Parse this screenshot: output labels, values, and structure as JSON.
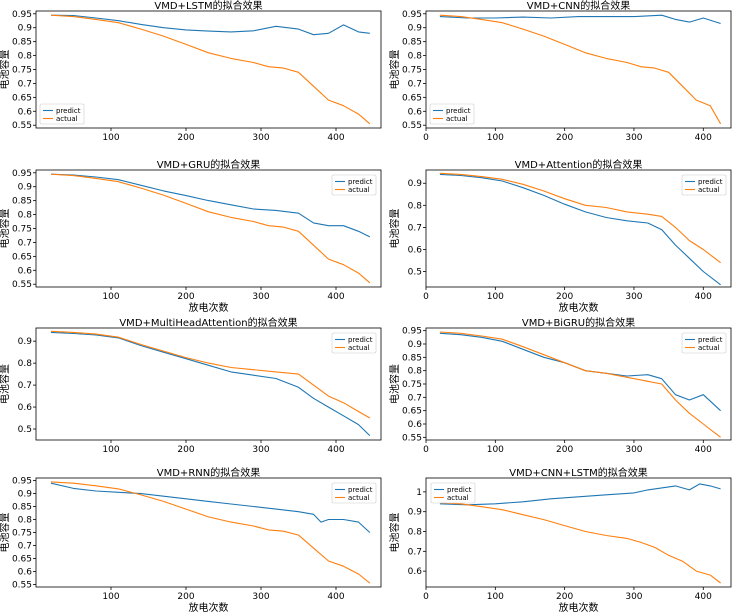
{
  "colors": {
    "predict": "#1f77b4",
    "actual": "#ff7f0e"
  },
  "chart_data": [
    {
      "type": "line",
      "title": "VMD+LSTM的拟合效果",
      "xlabel": "",
      "ylabel": "电池容量",
      "xlim": [
        0,
        460
      ],
      "ylim": [
        0.54,
        0.96
      ],
      "xticks": [
        100,
        200,
        300,
        400
      ],
      "yticks": [
        0.55,
        0.6,
        0.65,
        0.7,
        0.75,
        0.8,
        0.85,
        0.9,
        0.95
      ],
      "legend": "bottom-left",
      "series": [
        {
          "name": "predict",
          "x": [
            20,
            50,
            80,
            110,
            140,
            170,
            200,
            230,
            260,
            290,
            320,
            350,
            370,
            390,
            410,
            430,
            445
          ],
          "values": [
            0.945,
            0.944,
            0.935,
            0.925,
            0.912,
            0.9,
            0.892,
            0.888,
            0.885,
            0.889,
            0.905,
            0.895,
            0.875,
            0.88,
            0.91,
            0.885,
            0.88
          ]
        },
        {
          "name": "actual",
          "x": [
            20,
            50,
            80,
            110,
            140,
            170,
            200,
            230,
            260,
            290,
            310,
            330,
            350,
            370,
            390,
            410,
            430,
            445
          ],
          "values": [
            0.945,
            0.94,
            0.93,
            0.918,
            0.895,
            0.87,
            0.84,
            0.81,
            0.79,
            0.775,
            0.76,
            0.755,
            0.74,
            0.69,
            0.64,
            0.62,
            0.59,
            0.555
          ]
        }
      ]
    },
    {
      "type": "line",
      "title": "VMD+CNN的拟合效果",
      "xlabel": "",
      "ylabel": "电池容量",
      "xlim": [
        0,
        440
      ],
      "ylim": [
        0.54,
        0.96
      ],
      "xticks": [
        0,
        100,
        200,
        300,
        400
      ],
      "yticks": [
        0.55,
        0.6,
        0.65,
        0.7,
        0.75,
        0.8,
        0.85,
        0.9,
        0.95
      ],
      "legend": "bottom-left",
      "series": [
        {
          "name": "predict",
          "x": [
            20,
            60,
            100,
            140,
            180,
            220,
            260,
            300,
            340,
            360,
            380,
            400,
            425
          ],
          "values": [
            0.94,
            0.935,
            0.935,
            0.938,
            0.935,
            0.94,
            0.94,
            0.94,
            0.945,
            0.93,
            0.92,
            0.935,
            0.915
          ]
        },
        {
          "name": "actual",
          "x": [
            20,
            50,
            80,
            110,
            140,
            170,
            200,
            230,
            260,
            290,
            310,
            330,
            350,
            370,
            390,
            410,
            425
          ],
          "values": [
            0.945,
            0.94,
            0.93,
            0.918,
            0.895,
            0.87,
            0.84,
            0.81,
            0.79,
            0.775,
            0.76,
            0.755,
            0.74,
            0.69,
            0.64,
            0.62,
            0.555
          ]
        }
      ]
    },
    {
      "type": "line",
      "title": "VMD+GRU的拟合效果",
      "xlabel": "放电次数",
      "ylabel": "电池容量",
      "xlim": [
        0,
        460
      ],
      "ylim": [
        0.54,
        0.96
      ],
      "xticks": [
        100,
        200,
        300,
        400
      ],
      "yticks": [
        0.55,
        0.6,
        0.65,
        0.7,
        0.75,
        0.8,
        0.85,
        0.9,
        0.95
      ],
      "legend": "top-right",
      "series": [
        {
          "name": "predict",
          "x": [
            20,
            50,
            80,
            110,
            140,
            170,
            200,
            230,
            260,
            290,
            320,
            350,
            370,
            390,
            410,
            430,
            445
          ],
          "values": [
            0.945,
            0.942,
            0.935,
            0.925,
            0.905,
            0.885,
            0.868,
            0.85,
            0.835,
            0.82,
            0.815,
            0.805,
            0.77,
            0.76,
            0.76,
            0.74,
            0.72
          ]
        },
        {
          "name": "actual",
          "x": [
            20,
            50,
            80,
            110,
            140,
            170,
            200,
            230,
            260,
            290,
            310,
            330,
            350,
            370,
            390,
            410,
            430,
            445
          ],
          "values": [
            0.945,
            0.94,
            0.93,
            0.918,
            0.895,
            0.87,
            0.84,
            0.81,
            0.79,
            0.775,
            0.76,
            0.755,
            0.74,
            0.69,
            0.64,
            0.62,
            0.59,
            0.555
          ]
        }
      ]
    },
    {
      "type": "line",
      "title": "VMD+Attention的拟合效果",
      "xlabel": "放电次数",
      "ylabel": "电池容量",
      "xlim": [
        0,
        440
      ],
      "ylim": [
        0.43,
        0.96
      ],
      "xticks": [
        0,
        100,
        200,
        300,
        400
      ],
      "yticks": [
        0.5,
        0.6,
        0.7,
        0.8,
        0.9
      ],
      "legend": "top-right",
      "series": [
        {
          "name": "predict",
          "x": [
            20,
            50,
            80,
            110,
            140,
            170,
            200,
            230,
            260,
            290,
            320,
            340,
            360,
            380,
            400,
            425
          ],
          "values": [
            0.94,
            0.935,
            0.925,
            0.91,
            0.88,
            0.845,
            0.805,
            0.77,
            0.745,
            0.73,
            0.72,
            0.69,
            0.62,
            0.56,
            0.5,
            0.44
          ]
        },
        {
          "name": "actual",
          "x": [
            20,
            50,
            80,
            110,
            140,
            170,
            200,
            230,
            260,
            290,
            320,
            340,
            360,
            380,
            400,
            425
          ],
          "values": [
            0.945,
            0.94,
            0.93,
            0.918,
            0.895,
            0.865,
            0.83,
            0.8,
            0.79,
            0.77,
            0.76,
            0.75,
            0.7,
            0.64,
            0.6,
            0.54
          ]
        }
      ]
    },
    {
      "type": "line",
      "title": "VMD+MultiHeadAttention的拟合效果",
      "xlabel": "",
      "ylabel": "电池容量",
      "xlim": [
        0,
        460
      ],
      "ylim": [
        0.45,
        0.96
      ],
      "xticks": [
        100,
        200,
        300,
        400
      ],
      "yticks": [
        0.5,
        0.6,
        0.7,
        0.8,
        0.9
      ],
      "legend": "top-right",
      "series": [
        {
          "name": "predict",
          "x": [
            20,
            50,
            80,
            110,
            140,
            170,
            200,
            230,
            260,
            290,
            320,
            350,
            370,
            390,
            410,
            430,
            445
          ],
          "values": [
            0.94,
            0.935,
            0.928,
            0.915,
            0.88,
            0.85,
            0.82,
            0.79,
            0.76,
            0.745,
            0.73,
            0.69,
            0.64,
            0.6,
            0.56,
            0.52,
            0.47
          ]
        },
        {
          "name": "actual",
          "x": [
            20,
            50,
            80,
            110,
            140,
            170,
            200,
            230,
            260,
            290,
            320,
            350,
            370,
            390,
            410,
            430,
            445
          ],
          "values": [
            0.945,
            0.94,
            0.932,
            0.918,
            0.885,
            0.855,
            0.825,
            0.8,
            0.78,
            0.77,
            0.76,
            0.75,
            0.7,
            0.65,
            0.62,
            0.58,
            0.55
          ]
        }
      ]
    },
    {
      "type": "line",
      "title": "VMD+BiGRU的拟合效果",
      "xlabel": "",
      "ylabel": "电池容量",
      "xlim": [
        0,
        440
      ],
      "ylim": [
        0.54,
        0.96
      ],
      "xticks": [
        0,
        100,
        200,
        300,
        400
      ],
      "yticks": [
        0.55,
        0.6,
        0.65,
        0.7,
        0.75,
        0.8,
        0.85,
        0.9,
        0.95
      ],
      "legend": "top-right",
      "series": [
        {
          "name": "predict",
          "x": [
            20,
            50,
            80,
            110,
            140,
            170,
            200,
            230,
            260,
            290,
            320,
            340,
            360,
            380,
            400,
            425
          ],
          "values": [
            0.94,
            0.935,
            0.925,
            0.91,
            0.88,
            0.85,
            0.83,
            0.8,
            0.79,
            0.78,
            0.785,
            0.77,
            0.71,
            0.69,
            0.71,
            0.65
          ]
        },
        {
          "name": "actual",
          "x": [
            20,
            50,
            80,
            110,
            140,
            170,
            200,
            230,
            260,
            290,
            320,
            340,
            360,
            380,
            400,
            425
          ],
          "values": [
            0.945,
            0.94,
            0.93,
            0.918,
            0.89,
            0.86,
            0.83,
            0.8,
            0.79,
            0.775,
            0.76,
            0.75,
            0.69,
            0.64,
            0.6,
            0.55
          ]
        }
      ]
    },
    {
      "type": "line",
      "title": "VMD+RNN的拟合效果",
      "xlabel": "放电次数",
      "ylabel": "电池容量",
      "xlim": [
        0,
        460
      ],
      "ylim": [
        0.54,
        0.96
      ],
      "xticks": [
        100,
        200,
        300,
        400
      ],
      "yticks": [
        0.55,
        0.6,
        0.65,
        0.7,
        0.75,
        0.8,
        0.85,
        0.9,
        0.95
      ],
      "legend": "top-right",
      "series": [
        {
          "name": "predict",
          "x": [
            20,
            50,
            80,
            110,
            140,
            170,
            200,
            230,
            260,
            290,
            320,
            350,
            370,
            380,
            390,
            410,
            430,
            445
          ],
          "values": [
            0.94,
            0.92,
            0.91,
            0.905,
            0.9,
            0.89,
            0.88,
            0.87,
            0.86,
            0.85,
            0.84,
            0.83,
            0.82,
            0.79,
            0.8,
            0.8,
            0.79,
            0.75
          ]
        },
        {
          "name": "actual",
          "x": [
            20,
            50,
            80,
            110,
            140,
            170,
            200,
            230,
            260,
            290,
            310,
            330,
            350,
            370,
            390,
            410,
            430,
            445
          ],
          "values": [
            0.945,
            0.94,
            0.93,
            0.918,
            0.895,
            0.87,
            0.84,
            0.81,
            0.79,
            0.775,
            0.76,
            0.755,
            0.74,
            0.69,
            0.64,
            0.62,
            0.59,
            0.555
          ]
        }
      ]
    },
    {
      "type": "line",
      "title": "VMD+CNN+LSTM的拟合效果",
      "xlabel": "放电次数",
      "ylabel": "电池容量",
      "xlim": [
        0,
        440
      ],
      "ylim": [
        0.52,
        1.07
      ],
      "xticks": [
        0,
        100,
        200,
        300,
        400
      ],
      "yticks": [
        0.6,
        0.7,
        0.8,
        0.9,
        1.0
      ],
      "legend": "top-left",
      "series": [
        {
          "name": "predict",
          "x": [
            20,
            60,
            100,
            140,
            180,
            220,
            260,
            300,
            320,
            340,
            360,
            380,
            395,
            410,
            425
          ],
          "values": [
            0.94,
            0.935,
            0.94,
            0.95,
            0.965,
            0.975,
            0.985,
            0.995,
            1.01,
            1.02,
            1.03,
            1.01,
            1.04,
            1.03,
            1.015
          ]
        },
        {
          "name": "actual",
          "x": [
            20,
            50,
            80,
            110,
            140,
            170,
            200,
            230,
            260,
            290,
            310,
            330,
            350,
            370,
            390,
            410,
            425
          ],
          "values": [
            0.945,
            0.94,
            0.925,
            0.91,
            0.885,
            0.86,
            0.83,
            0.8,
            0.78,
            0.765,
            0.745,
            0.72,
            0.68,
            0.65,
            0.6,
            0.58,
            0.54
          ]
        }
      ]
    }
  ]
}
